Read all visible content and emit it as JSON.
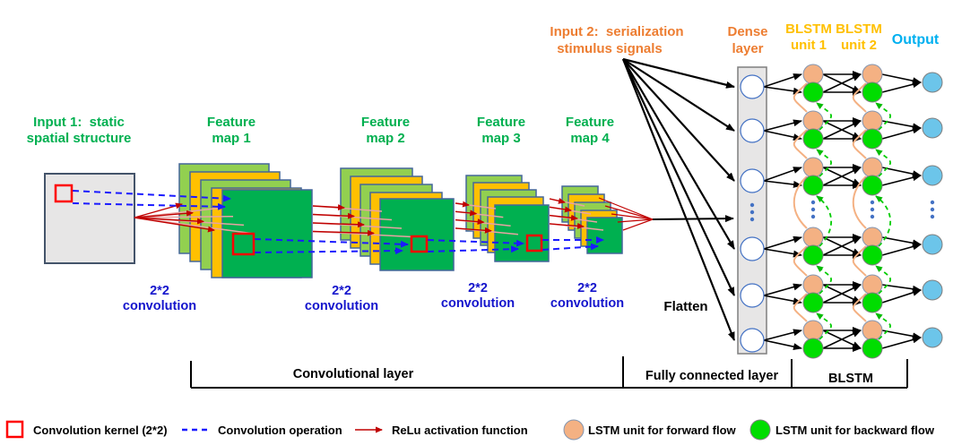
{
  "colors": {
    "label_green": "#00b050",
    "label_blue": "#1414cc",
    "label_orange": "#ed7d31",
    "label_yellow": "#ffc000",
    "label_cyan": "#00b0f0",
    "sheet_light_green": "#92d050",
    "sheet_yellow": "#ffc000",
    "sheet_front_green": "#00b050",
    "sheet_border": "#44679a",
    "input_box_gray": "#e7e6e6",
    "input_box_border": "#44546a",
    "kernel_red": "#ff0000",
    "conv_op_blue": "#1a1aff",
    "relu_red": "#c00000",
    "relu_pink": "#e8a3a3",
    "forward_node_orange": "#f4b183",
    "backward_node_green": "#00dd00",
    "output_node_blue": "#6cc5ea",
    "dense_node_fill": "#ffffff",
    "node_border_blue": "#4472c4",
    "dense_box_fill": "#e7e6e6",
    "dense_box_border": "#7f7f7f",
    "arrow_black": "#000000",
    "dots_blue": "#4472c4"
  },
  "diagram": {
    "input1": {
      "line1": "Input 1:  static",
      "line2": "spatial structure"
    },
    "input2": {
      "line1": "Input 2:  serialization",
      "line2": "stimulus signals"
    },
    "feature_maps": [
      {
        "line1": "Feature",
        "line2": "map 1"
      },
      {
        "line1": "Feature",
        "line2": "map 2"
      },
      {
        "line1": "Feature",
        "line2": "map 3"
      },
      {
        "line1": "Feature",
        "line2": "map 4"
      }
    ],
    "conv_labels": [
      {
        "line1": "2*2",
        "line2": "convolution"
      },
      {
        "line1": "2*2",
        "line2": "convolution"
      },
      {
        "line1": "2*2",
        "line2": "convolution"
      },
      {
        "line1": "2*2",
        "line2": "convolution"
      }
    ],
    "flatten_label": "Flatten",
    "dense": {
      "line1": "Dense",
      "line2": "layer"
    },
    "blstm_units": [
      {
        "line1": "BLSTM",
        "line2": "unit 1"
      },
      {
        "line1": "BLSTM",
        "line2": "unit 2"
      }
    ],
    "output_label": "Output",
    "sections": {
      "conv": "Convolutional layer",
      "fc": "Fully connected layer",
      "blstm": "BLSTM"
    }
  },
  "legend": {
    "items": [
      {
        "symbol": "red-square-outline",
        "label": "Convolution kernel (2*2)"
      },
      {
        "symbol": "blue-dashed-line",
        "label": "Convolution operation"
      },
      {
        "symbol": "red-arrow",
        "label": "ReLu activation function"
      },
      {
        "symbol": "orange-circle",
        "label": "LSTM unit for forward flow"
      },
      {
        "symbol": "green-circle",
        "label": "LSTM unit for backward flow"
      }
    ]
  }
}
